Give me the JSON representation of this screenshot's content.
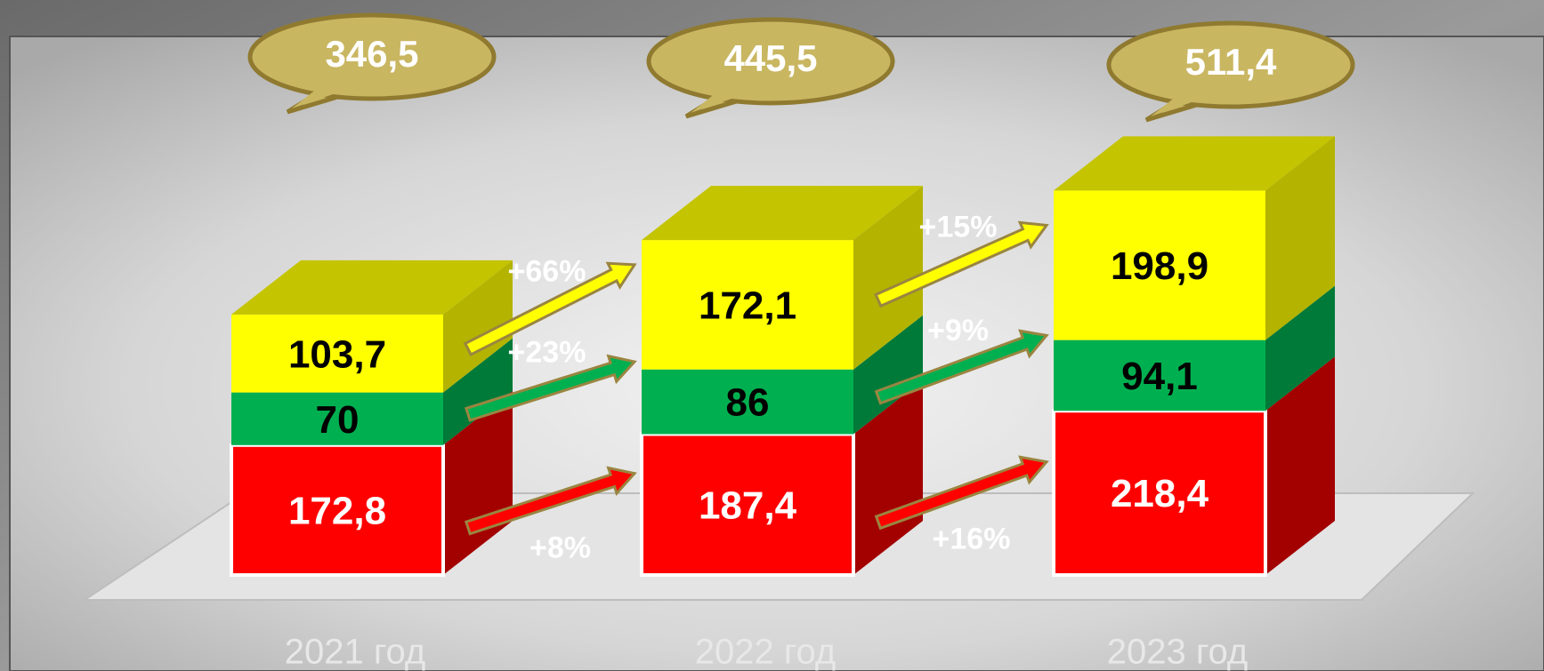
{
  "chart_data": {
    "type": "bar3d_stacked",
    "categories": [
      "2021 год",
      "2022 год",
      "2023 год"
    ],
    "total_labels": [
      "346,5",
      "445,5",
      "511,4"
    ],
    "series": [
      {
        "color": "#ff0000",
        "side_color": "#a30000",
        "values": [
          172.8,
          187.4,
          218.4
        ],
        "value_labels": [
          "172,8",
          "187,4",
          "218,4"
        ],
        "changes": [
          "+8%",
          "+16%"
        ],
        "label_color": "#ffffff"
      },
      {
        "color": "#00b050",
        "side_color": "#007a38",
        "values": [
          70,
          86,
          94.1
        ],
        "value_labels": [
          "70",
          "86",
          "94,1"
        ],
        "changes": [
          "+23%",
          "+9%"
        ],
        "label_color": "#000000"
      },
      {
        "color": "#ffff00",
        "side_color": "#b3b300",
        "top_color": "#c4c400",
        "values": [
          103.7,
          172.1,
          198.9
        ],
        "value_labels": [
          "103,7",
          "172,1",
          "198,9"
        ],
        "changes": [
          "+66%",
          "+15%"
        ],
        "label_color": "#000000"
      }
    ]
  }
}
